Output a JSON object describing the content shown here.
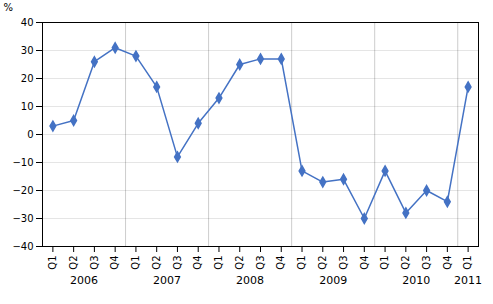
{
  "chart_data": {
    "type": "line",
    "y_label": "%",
    "categories": [
      "Q1",
      "Q2",
      "Q3",
      "Q4",
      "Q1",
      "Q2",
      "Q3",
      "Q4",
      "Q1",
      "Q2",
      "Q3",
      "Q4",
      "Q1",
      "Q2",
      "Q3",
      "Q4",
      "Q1",
      "Q2",
      "Q3",
      "Q4",
      "Q1"
    ],
    "values": [
      3,
      5,
      26,
      31,
      28,
      17,
      -8,
      4,
      13,
      25,
      27,
      27,
      -13,
      -17,
      -16,
      -30,
      -13,
      -28,
      -20,
      -24,
      17
    ],
    "annotations": [
      "2006",
      "2007",
      "2008",
      "2009",
      "2010",
      "2011"
    ],
    "color": "#4472C4",
    "marker": "diamond",
    "ylim": [
      -40,
      40
    ],
    "yticks": [
      -40,
      -30,
      -20,
      -10,
      0,
      10,
      20,
      30,
      40
    ],
    "grid": true
  }
}
